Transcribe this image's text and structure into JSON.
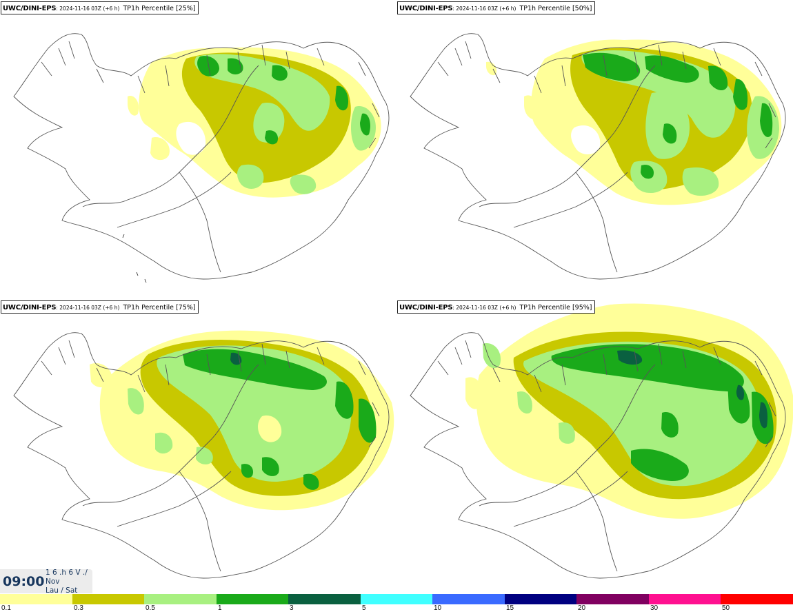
{
  "panels": [
    {
      "model": "UWC/DINI-EPS",
      "date": ": 2024-11-16 03Z (+6 h)",
      "param": "TP1h Percentile [25%]"
    },
    {
      "model": "UWC/DINI-EPS",
      "date": ": 2024-11-16 03Z (+6 h)",
      "param": "TP1h Percentile [50%]"
    },
    {
      "model": "UWC/DINI-EPS",
      "date": ": 2024-11-16 03Z (+6 h)",
      "param": "TP1h Percentile [75%]"
    },
    {
      "model": "UWC/DINI-EPS",
      "date": ": 2024-11-16 03Z (+6 h)",
      "param": "TP1h Percentile [95%]"
    }
  ],
  "time": {
    "clock": "09:00",
    "line1": "1 6 .h 6 V ./",
    "line2": "Nov",
    "line3": "Lau / Sat"
  },
  "legend": {
    "colors": [
      "#ffff99",
      "#c8c800",
      "#a8f080",
      "#1aaa1a",
      "#0a6040",
      "#40ffff",
      "#3a6aff",
      "#000080",
      "#800060",
      "#ff1090",
      "#ff0000"
    ],
    "labels": [
      "0.1",
      "0.3",
      "0.5",
      "1",
      "3",
      "5",
      "10",
      "15",
      "20",
      "30",
      "50"
    ]
  }
}
